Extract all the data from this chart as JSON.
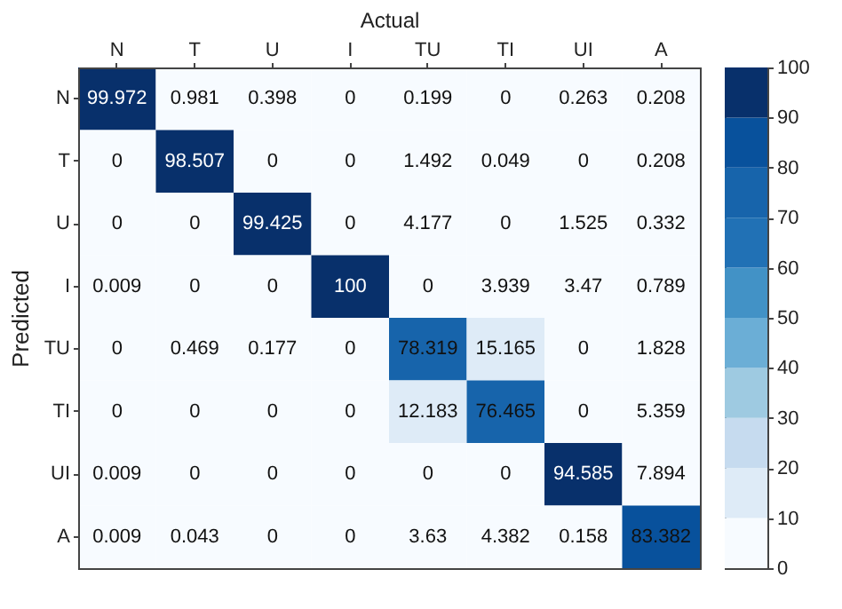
{
  "chart_data": {
    "type": "heatmap",
    "xlabel": "Actual",
    "ylabel": "Predicted",
    "categories": [
      "N",
      "T",
      "U",
      "I",
      "TU",
      "TI",
      "UI",
      "A"
    ],
    "y_categories": [
      "N",
      "T",
      "U",
      "I",
      "TU",
      "TI",
      "UI",
      "A"
    ],
    "cells": [
      [
        99.972,
        0.981,
        0.398,
        0,
        0.199,
        0,
        0.263,
        0.208
      ],
      [
        0,
        98.507,
        0,
        0,
        1.492,
        0.049,
        0,
        0.208
      ],
      [
        0,
        0,
        99.425,
        0,
        4.177,
        0,
        1.525,
        0.332
      ],
      [
        0.009,
        0,
        0,
        100,
        0,
        3.939,
        3.47,
        0.789
      ],
      [
        0,
        0.469,
        0.177,
        0,
        78.319,
        15.165,
        0,
        1.828
      ],
      [
        0,
        0,
        0,
        0,
        12.183,
        76.465,
        0,
        5.359
      ],
      [
        0.009,
        0,
        0,
        0,
        0,
        0,
        94.585,
        7.894
      ],
      [
        0.009,
        0.043,
        0,
        0,
        3.63,
        4.382,
        0.158,
        83.382
      ]
    ],
    "clim": [
      0,
      100
    ],
    "cticks": [
      0,
      10,
      20,
      30,
      40,
      50,
      60,
      70,
      80,
      90,
      100
    ],
    "data_labels": true,
    "grid": false
  }
}
